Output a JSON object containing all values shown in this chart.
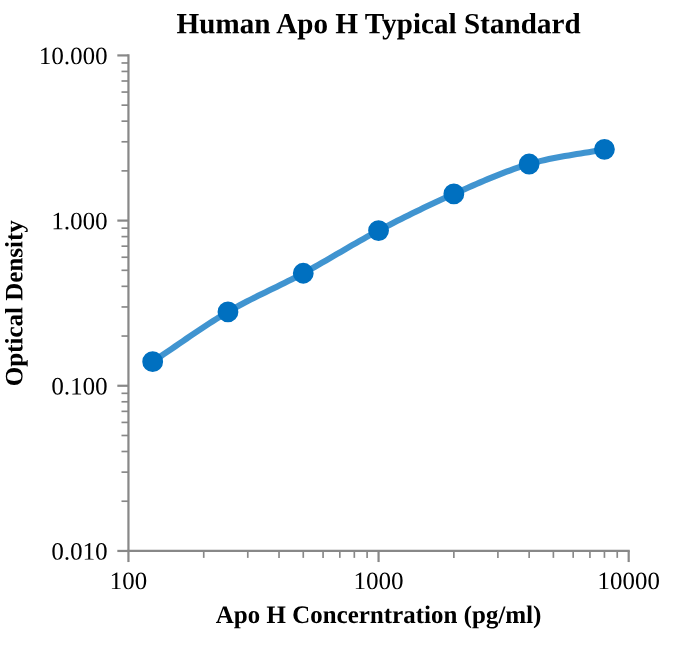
{
  "chart_data": {
    "type": "line",
    "title": "Human Apo H Typical Standard",
    "xlabel": "Apo H Concerntration (pg/ml)",
    "ylabel": "Optical Density",
    "log": "xy",
    "x": [
      125,
      250,
      500,
      1000,
      2000,
      4000,
      8000
    ],
    "series": [
      {
        "color": "#0070c0",
        "values": [
          0.14,
          0.28,
          0.48,
          0.87,
          1.45,
          2.2,
          2.7
        ]
      }
    ],
    "marker": "circle",
    "grid": false,
    "legend": false,
    "xlim": [
      100,
      10000
    ],
    "xticks": [
      100,
      1000,
      10000
    ],
    "ylim": [
      0.01,
      10
    ],
    "yticks": [
      {
        "value": 0.01,
        "label": "0.010"
      },
      {
        "value": 0.1,
        "label": "0.100"
      },
      {
        "value": 1,
        "label": "1.000"
      },
      {
        "value": 10,
        "label": "10.000"
      }
    ]
  }
}
